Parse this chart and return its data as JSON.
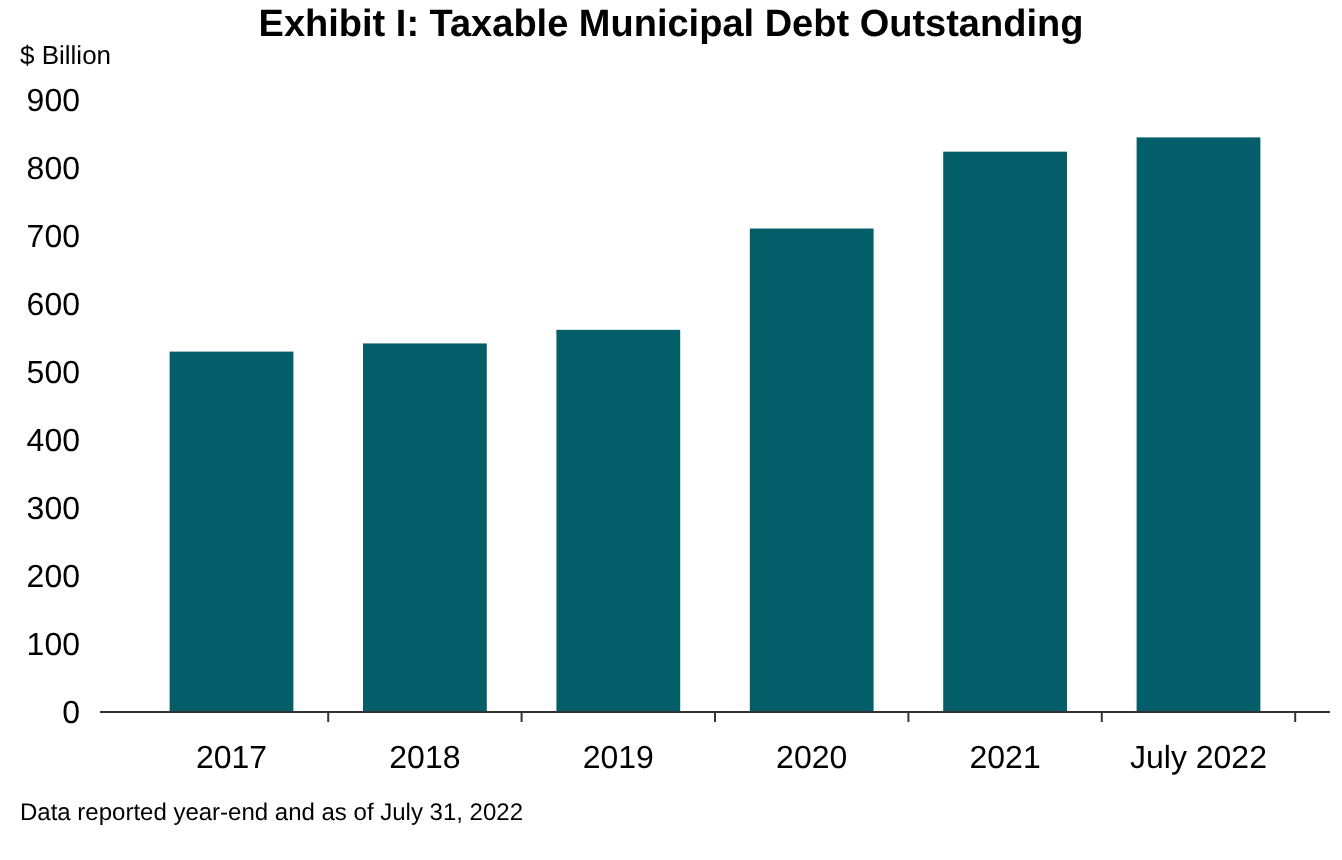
{
  "chart_data": {
    "type": "bar",
    "title": "Exhibit I: Taxable Municipal Debt Outstanding",
    "ylabel": "$ Billion",
    "categories": [
      "2017",
      "2018",
      "2019",
      "2020",
      "2021",
      "July 2022"
    ],
    "values": [
      530,
      542,
      562,
      711,
      824,
      845
    ],
    "color": "#045e6a",
    "ylim": [
      0,
      900
    ],
    "yticks": [
      0,
      100,
      200,
      300,
      400,
      500,
      600,
      700,
      800,
      900
    ],
    "grid": false,
    "annotations": [
      "Data reported year-end and as of July 31, 2022"
    ]
  }
}
